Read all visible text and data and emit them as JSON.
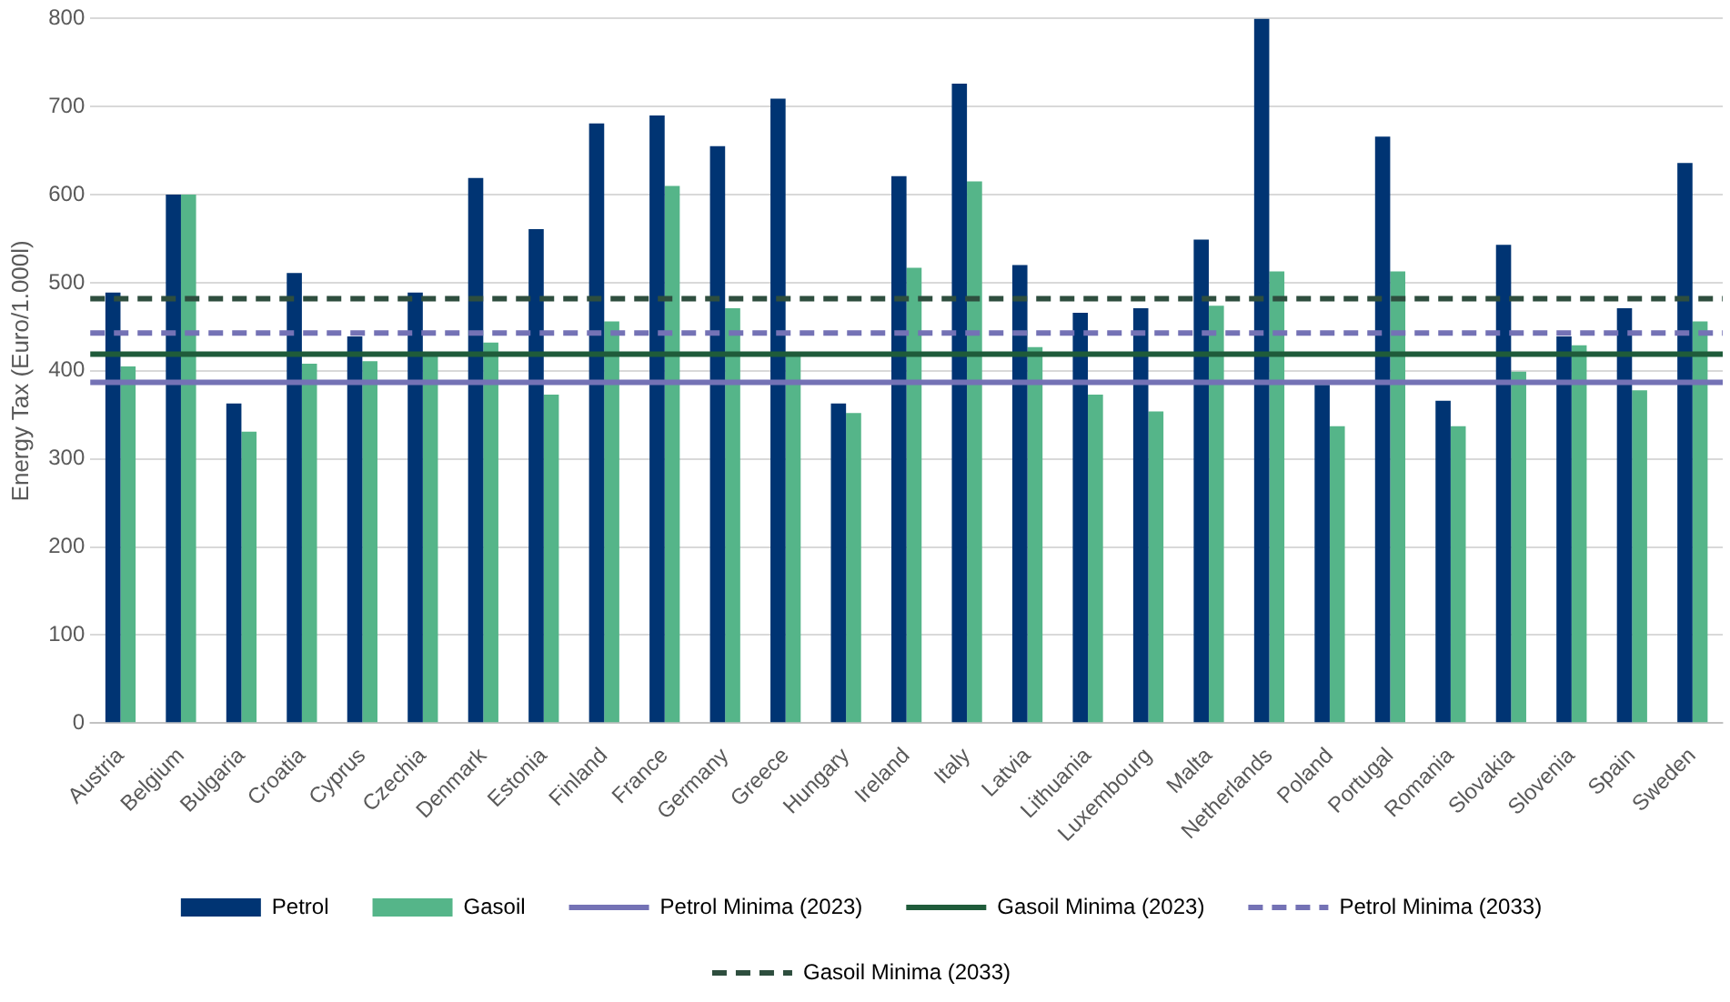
{
  "chart_data": {
    "type": "bar",
    "ylabel": "Energy Tax (Euro/1.000l)",
    "categories": [
      "Austria",
      "Belgium",
      "Bulgaria",
      "Croatia",
      "Cyprus",
      "Czechia",
      "Denmark",
      "Estonia",
      "Finland",
      "France",
      "Germany",
      "Greece",
      "Hungary",
      "Ireland",
      "Italy",
      "Latvia",
      "Lithuania",
      "Luxembourg",
      "Malta",
      "Netherlands",
      "Poland",
      "Portugal",
      "Romania",
      "Slovakia",
      "Slovenia",
      "Spain",
      "Sweden"
    ],
    "series": [
      {
        "name": "Petrol",
        "color": "#003473",
        "values": [
          489,
          600,
          363,
          511,
          439,
          489,
          619,
          561,
          681,
          690,
          655,
          709,
          363,
          621,
          726,
          520,
          466,
          471,
          549,
          800,
          384,
          666,
          366,
          543,
          439,
          471,
          636
        ]
      },
      {
        "name": "Gasoil",
        "color": "#55b589",
        "values": [
          405,
          600,
          331,
          408,
          411,
          418,
          432,
          373,
          456,
          610,
          471,
          420,
          352,
          517,
          615,
          427,
          373,
          354,
          474,
          513,
          337,
          513,
          337,
          399,
          429,
          378,
          456
        ]
      }
    ],
    "ref_lines": [
      {
        "axis": "y",
        "value": 387,
        "label": "Petrol Minima (2023)",
        "color": "#7472b5",
        "line_style": "solid"
      },
      {
        "axis": "y",
        "value": 419,
        "label": "Gasoil Minima (2023)",
        "color": "#1f5b3a",
        "line_style": "solid"
      },
      {
        "axis": "y",
        "value": 443,
        "label": "Petrol Minima (2033)",
        "color": "#7472b5",
        "line_style": "dashed"
      },
      {
        "axis": "y",
        "value": 482,
        "label": "Gasoil Minima (2033)",
        "color": "#2e4e3e",
        "line_style": "dashed"
      }
    ],
    "ylim": [
      0,
      800
    ],
    "yticks": [
      0,
      100,
      200,
      300,
      400,
      500,
      600,
      700,
      800
    ],
    "grid": "y",
    "legend": "bottom"
  }
}
